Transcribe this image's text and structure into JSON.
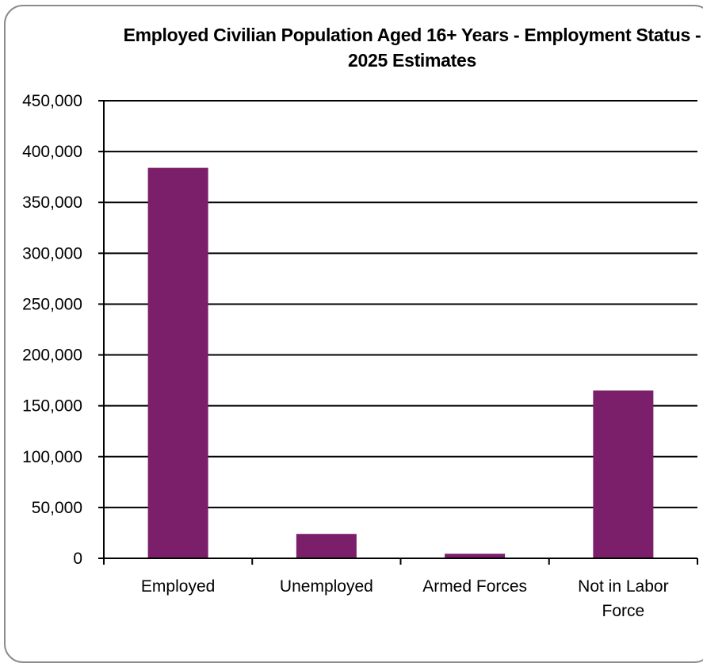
{
  "chart_data": {
    "type": "bar",
    "title": "Employed Civilian Population Aged 16+ Years - Employment Status - 2025 Estimates",
    "xlabel": "",
    "ylabel": "",
    "categories": [
      "Employed",
      "Unemployed",
      "Armed Forces",
      "Not in Labor Force"
    ],
    "category_lines": [
      [
        "Employed"
      ],
      [
        "Unemployed"
      ],
      [
        "Armed Forces"
      ],
      [
        "Not in Labor",
        "Force"
      ]
    ],
    "values": [
      384000,
      24000,
      4500,
      165000
    ],
    "ylim": [
      0,
      450000
    ],
    "yticks": [
      0,
      50000,
      100000,
      150000,
      200000,
      250000,
      300000,
      350000,
      400000,
      450000
    ],
    "ytick_labels": [
      "0",
      "50,000",
      "100,000",
      "150,000",
      "200,000",
      "250,000",
      "300,000",
      "350,000",
      "400,000",
      "450,000"
    ],
    "grid": true,
    "legend": "none",
    "bar_color": "#7b1f6a"
  }
}
